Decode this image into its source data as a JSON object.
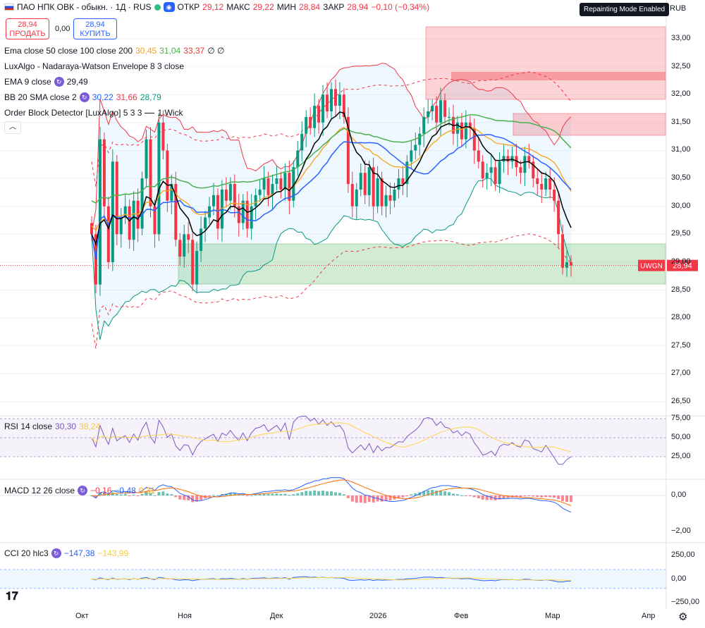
{
  "header": {
    "symbol": "ПАО НПК ОВК - обыкн. · 1Д · RUS",
    "open_label": "ОТКР",
    "open": "29,12",
    "high_label": "МАКС",
    "high": "29,22",
    "low_label": "МИН",
    "low": "28,84",
    "close_label": "ЗАКР",
    "close": "28,94",
    "change": "−0,10 (−0,34%)"
  },
  "trade": {
    "sell_price": "28,94",
    "sell_label": "ПРОДАТЬ",
    "spread": "0,00",
    "buy_price": "28,94",
    "buy_label": "КУПИТЬ"
  },
  "indicators": {
    "ema_multi": {
      "label": "Ema close 50 close 100 close 200",
      "v1": "30,45",
      "v2": "31,04",
      "v3": "33,37",
      "tail": "∅ ∅"
    },
    "nw_envelope": {
      "label": "LuxAlgo - Nadaraya-Watson Envelope 8 3 close"
    },
    "ema9": {
      "label": "EMA 9 close",
      "value": "29,49"
    },
    "bb": {
      "label": "BB 20 SMA close 2",
      "v1": "30,22",
      "v2": "31,66",
      "v3": "28,79"
    },
    "ob": {
      "label": "Order Block Detector [LuxAlgo] 5 3 3",
      "tail": "1 Wick"
    }
  },
  "rsi": {
    "label": "RSI 14 close",
    "v1": "30,30",
    "v2": "38,24"
  },
  "macd": {
    "label": "MACD 12 26 close",
    "v1": "−0,16",
    "v2": "−0,48",
    "v3": "0,31"
  },
  "cci": {
    "label": "CCI 20 hlc3",
    "v1": "−147,38",
    "v2": "−143,99"
  },
  "badge": "Repainting Mode Enabled",
  "currency": "RUB",
  "price_tag": {
    "name": "UWGN",
    "value": "28,94"
  },
  "colors": {
    "up": "#089981",
    "down": "#f23645",
    "ema9": "#000000",
    "bb_basis": "#2962ff",
    "ema50": "#f7a21b",
    "ema100": "#4caf50",
    "ema200": "#e53935",
    "rsi": "#7e57c2",
    "signal": "#ffd54f"
  },
  "chart_data": {
    "type": "candlestick",
    "price_ticks": [
      "33,00",
      "32,50",
      "32,00",
      "31,50",
      "31,00",
      "30,50",
      "30,00",
      "29,50",
      "29,00",
      "28,50",
      "28,00",
      "27,50",
      "27,00",
      "26,50"
    ],
    "x_labels": [
      "Окт",
      "Ноя",
      "Дек",
      "2026",
      "Фев",
      "Мар",
      "Апр"
    ],
    "rsi_ticks": [
      "75,00",
      "50,00",
      "25,00"
    ],
    "macd_ticks": [
      "0,00",
      "−2,00"
    ],
    "cci_ticks": [
      "250,00",
      "0,00",
      "−250,00"
    ],
    "closes": [
      29.5,
      28.6,
      31.2,
      30.0,
      29.0,
      30.8,
      29.5,
      29.8,
      30.0,
      29.4,
      30.1,
      29.6,
      30.5,
      31.2,
      30.0,
      29.5,
      31.5,
      31.0,
      30.1,
      30.4,
      29.4,
      29.1,
      29.5,
      29.4,
      28.6,
      29.2,
      29.6,
      29.8,
      30.0,
      30.2,
      29.6,
      30.3,
      30.1,
      30.4,
      30.0,
      29.7,
      30.1,
      29.6,
      30.0,
      30.2,
      30.3,
      30.5,
      30.2,
      30.4,
      30.5,
      30.3,
      30.6,
      30.1,
      30.7,
      31.0,
      31.3,
      31.6,
      31.4,
      31.8,
      31.5,
      32.0,
      31.7,
      32.1,
      31.8,
      32.0,
      31.6,
      30.4,
      30.0,
      30.3,
      30.6,
      30.2,
      30.7,
      30.0,
      30.5,
      30.0,
      30.2,
      30.1,
      30.3,
      30.5,
      30.4,
      30.8,
      31.0,
      31.1,
      31.3,
      31.6,
      31.7,
      31.8,
      31.5,
      31.9,
      31.6,
      31.6,
      31.3,
      31.5,
      31.2,
      31.5,
      31.4,
      31.0,
      30.8,
      30.5,
      30.6,
      30.7,
      30.4,
      30.8,
      30.9,
      30.8,
      30.9,
      30.7,
      30.6,
      30.9,
      30.8,
      30.5,
      30.4,
      30.3,
      30.5,
      30.3,
      30.1,
      29.5,
      28.9,
      29.0,
      28.94
    ]
  }
}
